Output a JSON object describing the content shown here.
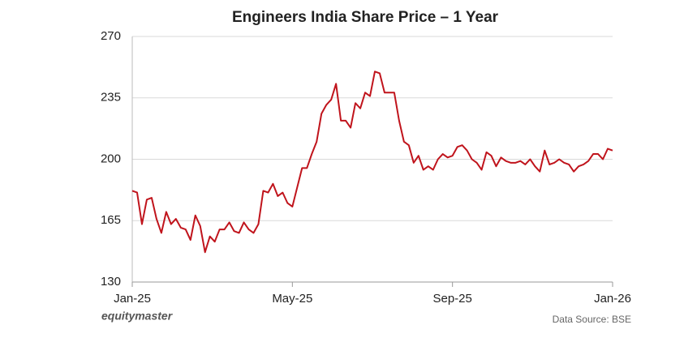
{
  "chart_data": {
    "type": "line",
    "title": "Engineers India Share Price – 1 Year",
    "categories": [
      "Jan-25",
      null,
      null,
      null,
      null,
      null,
      null,
      null,
      null,
      null,
      null,
      null,
      null,
      null,
      null,
      null,
      null,
      null,
      null,
      null,
      null,
      null,
      null,
      null,
      null,
      null,
      null,
      null,
      null,
      null,
      null,
      null,
      null,
      "May-25",
      null,
      null,
      null,
      null,
      null,
      null,
      null,
      null,
      null,
      null,
      null,
      null,
      null,
      null,
      null,
      null,
      null,
      null,
      null,
      null,
      null,
      null,
      null,
      null,
      null,
      null,
      null,
      null,
      null,
      null,
      null,
      null,
      "Sep-25",
      null,
      null,
      null,
      null,
      null,
      null,
      null,
      null,
      null,
      null,
      null,
      null,
      null,
      null,
      null,
      null,
      null,
      null,
      null,
      null,
      null,
      null,
      null,
      null,
      null,
      null,
      null,
      null,
      null,
      null,
      null,
      null,
      "Jan-26"
    ],
    "values": [
      182,
      181,
      163,
      177,
      178,
      166,
      158,
      170,
      163,
      166,
      161,
      160,
      154,
      168,
      162,
      147,
      156,
      153,
      160,
      160,
      164,
      159,
      158,
      164,
      160,
      158,
      163,
      182,
      181,
      186,
      179,
      181,
      175,
      173,
      184,
      195,
      195,
      203,
      210,
      226,
      231,
      234,
      243,
      222,
      222,
      218,
      232,
      229,
      238,
      236,
      250,
      249,
      238,
      238,
      238,
      222,
      210,
      208,
      198,
      202,
      194,
      196,
      194,
      200,
      203,
      201,
      202,
      207,
      208,
      205,
      200,
      198,
      194,
      204,
      202,
      196,
      201,
      199,
      198,
      198,
      199,
      197,
      200,
      196,
      193,
      205,
      197,
      198,
      200,
      198,
      197,
      193,
      196,
      197,
      199,
      203,
      203,
      200,
      206,
      205
    ],
    "color": "#c0141c",
    "ylim": [
      130,
      270
    ],
    "yticks": [
      130,
      165,
      200,
      235,
      270
    ],
    "grid": true,
    "brand": "equitymaster",
    "source": "Data Source: BSE"
  }
}
